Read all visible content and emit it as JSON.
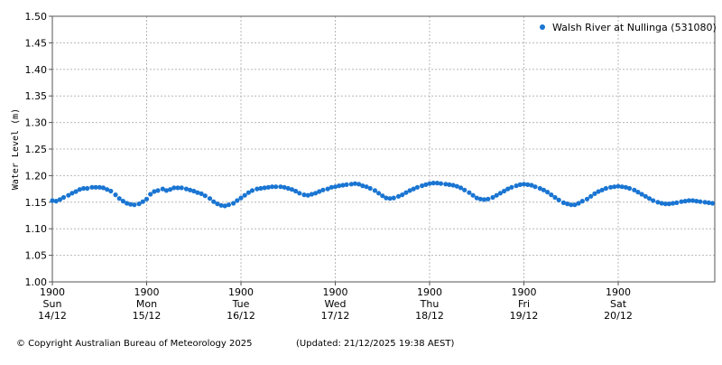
{
  "chart_data": {
    "type": "scatter",
    "ylabel": "Water Level (m)",
    "ylim": [
      1.0,
      1.5
    ],
    "yticks": [
      "1.50",
      "1.45",
      "1.40",
      "1.35",
      "1.30",
      "1.25",
      "1.20",
      "1.15",
      "1.10",
      "1.05",
      "1.00"
    ],
    "xlim_days": [
      0,
      7
    ],
    "x_ticks": [
      {
        "time": "1900",
        "day": "Sun",
        "date": "14/12"
      },
      {
        "time": "1900",
        "day": "Mon",
        "date": "15/12"
      },
      {
        "time": "1900",
        "day": "Tue",
        "date": "16/12"
      },
      {
        "time": "1900",
        "day": "Wed",
        "date": "17/12"
      },
      {
        "time": "1900",
        "day": "Thu",
        "date": "18/12"
      },
      {
        "time": "1900",
        "day": "Fri",
        "date": "19/12"
      },
      {
        "time": "1900",
        "day": "Sat",
        "date": "20/12"
      }
    ],
    "grid": true,
    "legend_position": "top-right",
    "series": [
      {
        "name": "Walsh River at Nullinga (531080)",
        "color": "#1a75d2",
        "x": [
          0.0,
          0.04,
          0.08,
          0.12,
          0.17,
          0.21,
          0.25,
          0.29,
          0.33,
          0.37,
          0.42,
          0.46,
          0.5,
          0.54,
          0.58,
          0.62,
          0.67,
          0.71,
          0.75,
          0.79,
          0.83,
          0.87,
          0.92,
          0.96,
          1.0,
          1.04,
          1.08,
          1.12,
          1.17,
          1.21,
          1.25,
          1.29,
          1.33,
          1.37,
          1.42,
          1.46,
          1.5,
          1.54,
          1.58,
          1.62,
          1.67,
          1.71,
          1.75,
          1.79,
          1.83,
          1.87,
          1.92,
          1.96,
          2.0,
          2.04,
          2.08,
          2.12,
          2.17,
          2.21,
          2.25,
          2.29,
          2.33,
          2.37,
          2.42,
          2.46,
          2.5,
          2.54,
          2.58,
          2.62,
          2.67,
          2.71,
          2.75,
          2.79,
          2.83,
          2.87,
          2.92,
          2.96,
          3.0,
          3.04,
          3.08,
          3.12,
          3.17,
          3.21,
          3.25,
          3.29,
          3.33,
          3.37,
          3.42,
          3.46,
          3.5,
          3.54,
          3.58,
          3.62,
          3.67,
          3.71,
          3.75,
          3.79,
          3.83,
          3.87,
          3.92,
          3.96,
          4.0,
          4.04,
          4.08,
          4.12,
          4.17,
          4.21,
          4.25,
          4.29,
          4.33,
          4.37,
          4.42,
          4.46,
          4.5,
          4.54,
          4.58,
          4.62,
          4.67,
          4.71,
          4.75,
          4.79,
          4.83,
          4.87,
          4.92,
          4.96,
          5.0,
          5.04,
          5.08,
          5.12,
          5.17,
          5.21,
          5.25,
          5.29,
          5.33,
          5.37,
          5.42,
          5.46,
          5.5,
          5.54,
          5.58,
          5.62,
          5.67,
          5.71,
          5.75,
          5.79,
          5.83,
          5.87,
          5.92,
          5.96,
          6.0,
          6.04,
          6.08,
          6.12,
          6.17,
          6.21,
          6.25,
          6.29,
          6.33,
          6.37,
          6.42,
          6.46,
          6.5,
          6.54,
          6.58,
          6.62,
          6.67,
          6.71,
          6.75,
          6.79,
          6.83,
          6.87,
          6.92,
          6.96,
          7.0
        ],
        "y": [
          1.153,
          1.152,
          1.155,
          1.159,
          1.163,
          1.167,
          1.17,
          1.174,
          1.176,
          1.176,
          1.178,
          1.178,
          1.178,
          1.177,
          1.174,
          1.171,
          1.164,
          1.157,
          1.152,
          1.148,
          1.146,
          1.145,
          1.147,
          1.151,
          1.156,
          1.165,
          1.17,
          1.172,
          1.175,
          1.172,
          1.174,
          1.177,
          1.177,
          1.177,
          1.175,
          1.173,
          1.171,
          1.168,
          1.166,
          1.162,
          1.157,
          1.151,
          1.147,
          1.144,
          1.143,
          1.145,
          1.148,
          1.153,
          1.158,
          1.163,
          1.168,
          1.172,
          1.175,
          1.176,
          1.177,
          1.178,
          1.179,
          1.179,
          1.179,
          1.178,
          1.176,
          1.174,
          1.171,
          1.167,
          1.164,
          1.163,
          1.165,
          1.167,
          1.17,
          1.173,
          1.175,
          1.178,
          1.179,
          1.181,
          1.182,
          1.183,
          1.184,
          1.185,
          1.184,
          1.181,
          1.179,
          1.176,
          1.172,
          1.167,
          1.162,
          1.158,
          1.157,
          1.158,
          1.161,
          1.164,
          1.168,
          1.172,
          1.175,
          1.178,
          1.181,
          1.183,
          1.185,
          1.186,
          1.186,
          1.185,
          1.184,
          1.183,
          1.182,
          1.18,
          1.177,
          1.173,
          1.168,
          1.163,
          1.158,
          1.156,
          1.155,
          1.156,
          1.159,
          1.163,
          1.167,
          1.171,
          1.175,
          1.178,
          1.181,
          1.183,
          1.184,
          1.183,
          1.182,
          1.179,
          1.176,
          1.173,
          1.169,
          1.164,
          1.159,
          1.154,
          1.149,
          1.147,
          1.145,
          1.145,
          1.148,
          1.152,
          1.156,
          1.161,
          1.166,
          1.17,
          1.173,
          1.176,
          1.178,
          1.179,
          1.18,
          1.179,
          1.178,
          1.176,
          1.173,
          1.169,
          1.165,
          1.161,
          1.157,
          1.153,
          1.15,
          1.148,
          1.147,
          1.147,
          1.148,
          1.149,
          1.151,
          1.152,
          1.153,
          1.153,
          1.152,
          1.151,
          1.15,
          1.149,
          1.148
        ]
      }
    ]
  },
  "footer": {
    "copyright": "© Copyright Australian Bureau of Meteorology 2025",
    "updated": "(Updated: 21/12/2025 19:38 AEST)"
  }
}
